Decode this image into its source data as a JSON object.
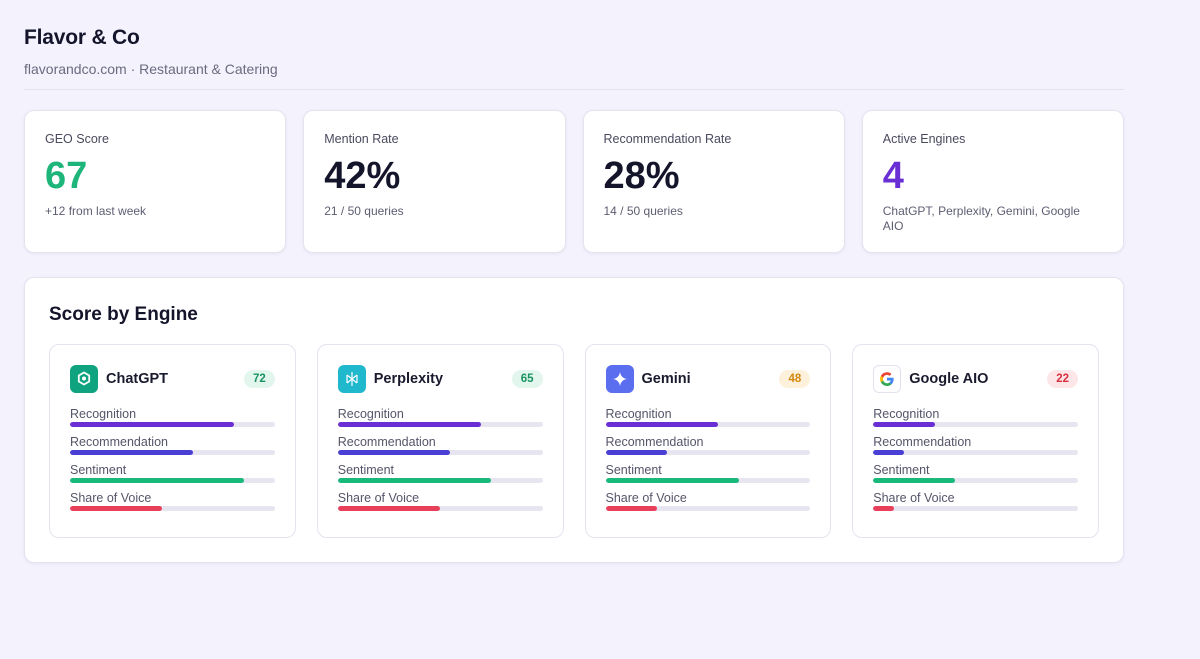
{
  "brand": {
    "title": "Flavor & Co",
    "subtitle": "flavorandco.com · Restaurant & Catering"
  },
  "stats": [
    {
      "label": "GEO Score",
      "value": "67",
      "sub": "+12 from last week",
      "color": "#1db57a"
    },
    {
      "label": "Mention Rate",
      "value": "42%",
      "sub": "21 / 50 queries",
      "color": "#14142b"
    },
    {
      "label": "Recommendation Rate",
      "value": "28%",
      "sub": "14 / 50 queries",
      "color": "#14142b"
    },
    {
      "label": "Active Engines",
      "value": "4",
      "sub": "ChatGPT, Perplexity, Gemini, Google AIO",
      "color": "#6a2fd4"
    }
  ],
  "engines_panel": {
    "title": "Score by Engine",
    "metric_labels": [
      "Recognition",
      "Recommendation",
      "Sentiment",
      "Share of Voice"
    ],
    "metric_colors": [
      "#6a2fd4",
      "#4a3fd4",
      "#19b97c",
      "#e8405a"
    ],
    "engines": [
      {
        "name": "ChatGPT",
        "score": "72",
        "icon": "chatgpt-icon",
        "icon_bg": "#10a37f",
        "badge_bg": "#e3f6ee",
        "badge_fg": "#18935f",
        "metrics": [
          0.8,
          0.6,
          0.85,
          0.45
        ]
      },
      {
        "name": "Perplexity",
        "score": "65",
        "icon": "perplexity-icon",
        "icon_bg": "#1fb8cd",
        "badge_bg": "#e3f6ee",
        "badge_fg": "#18935f",
        "metrics": [
          0.7,
          0.55,
          0.75,
          0.5
        ]
      },
      {
        "name": "Gemini",
        "score": "48",
        "icon": "gemini-icon",
        "icon_bg": "#5b6ef0",
        "badge_bg": "#fdf1dc",
        "badge_fg": "#d4870e",
        "metrics": [
          0.55,
          0.3,
          0.65,
          0.25
        ]
      },
      {
        "name": "Google AIO",
        "score": "22",
        "icon": "google-icon",
        "icon_bg": "#ffffff",
        "badge_bg": "#fde6e8",
        "badge_fg": "#d6303f",
        "metrics": [
          0.3,
          0.15,
          0.4,
          0.1
        ]
      }
    ]
  }
}
